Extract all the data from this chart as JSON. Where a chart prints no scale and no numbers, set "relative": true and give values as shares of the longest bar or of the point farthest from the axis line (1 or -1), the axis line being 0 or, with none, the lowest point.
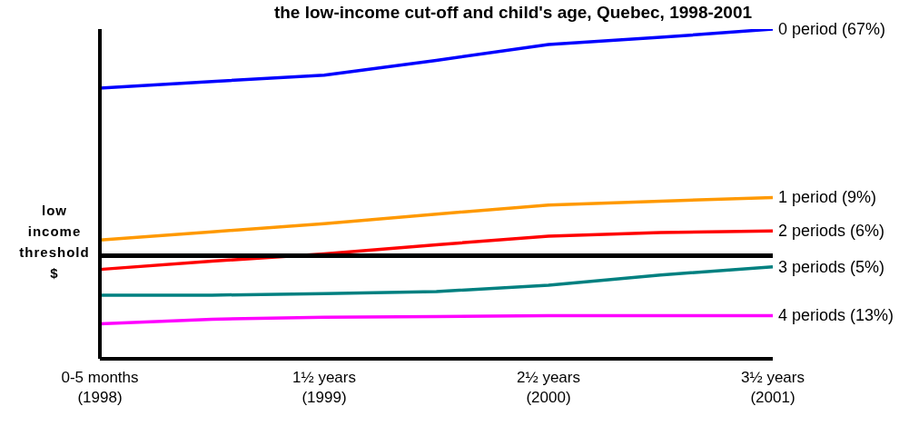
{
  "chart_data": {
    "type": "line",
    "title": "the low-income cut-off and child's age, Quebec, 1998-2001",
    "relative": true,
    "categories": [
      "0-5 months\n(1998)",
      null,
      "1½ years\n(1999)",
      null,
      "2½ years\n(2000)",
      null,
      "3½ years\n(2001)"
    ],
    "series": [
      {
        "name": "0 period (67%)",
        "color": "#0000ff",
        "values": [
          0.821,
          0.841,
          0.86,
          0.905,
          0.953,
          0.975,
          1
        ]
      },
      {
        "name": "1 period (9%)",
        "color": "#ff9900",
        "values": [
          0.36,
          0.385,
          0.41,
          0.439,
          0.466,
          0.478,
          0.489
        ]
      },
      {
        "name": "2 periods (6%)",
        "color": "#ff0000",
        "values": [
          0.271,
          0.296,
          0.318,
          0.346,
          0.372,
          0.383,
          0.388
        ]
      },
      {
        "name": "3 periods (5%)",
        "color": "#008080",
        "values": [
          0.193,
          0.193,
          0.198,
          0.204,
          0.223,
          0.254,
          0.279
        ]
      },
      {
        "name": "4 periods (13%)",
        "color": "#ff00ff",
        "values": [
          0.106,
          0.12,
          0.126,
          0.128,
          0.131,
          0.131,
          0.131
        ]
      }
    ],
    "ref_lines": [
      {
        "axis": "y",
        "value": 0.313,
        "label": "low\nincome\nthreshold\n$",
        "color": "#000000"
      }
    ],
    "grid": false,
    "marker": "none",
    "line_style": "solid"
  }
}
